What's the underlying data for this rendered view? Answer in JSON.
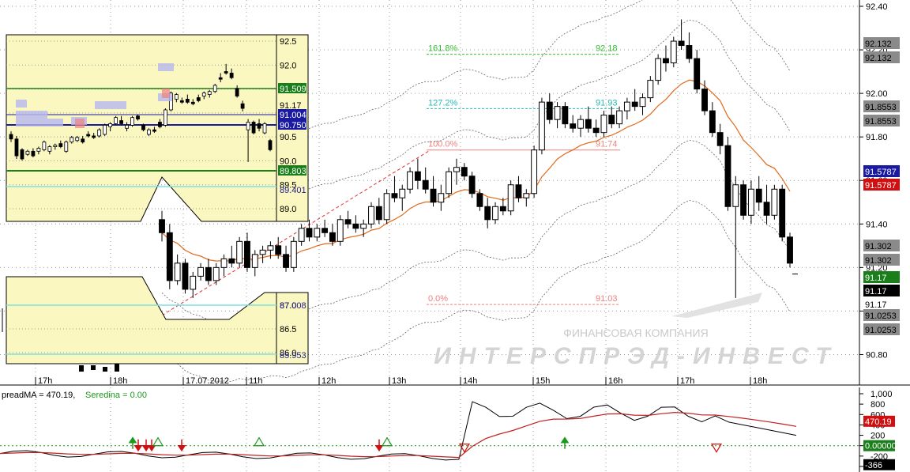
{
  "colors": {
    "up": "#ffffff",
    "down": "#000000",
    "ema": "#e06a1a",
    "band": "#666666",
    "fib_161": "#2fbf2f",
    "fib_127": "#27b7b7",
    "fib_100": "#f08080",
    "inset_bg": "#fbf7c0",
    "green_label": "#1a7f1a",
    "blue_label": "#1a1aa0",
    "red_label": "#d01010",
    "gray_label": "#8a8a8a",
    "black_label": "#000000",
    "cyan_line": "#7fe0e0"
  },
  "watermark": {
    "line1": "ФИНАНСОВАЯ КОМПАНИЯ",
    "line2": "ИНТЕРСПРЭД-ИНВЕСТ"
  },
  "main_chart": {
    "price_labels": [
      "92.40",
      "92.20",
      "92.00",
      "91.80",
      "91.60",
      "91.40",
      "91.20",
      "91.00",
      "90.80"
    ],
    "time_labels": [
      "17h",
      "18h",
      "17.07.2012",
      "11h",
      "12h",
      "13h",
      "14h",
      "15h",
      "16h",
      "17h",
      "18h"
    ],
    "fib": [
      {
        "pct": "161.8%",
        "value": "92.18"
      },
      {
        "pct": "127.2%",
        "value": "91.93"
      },
      {
        "pct": "100.0%",
        "value": "91.74"
      },
      {
        "pct": "0.0%",
        "value": "91.03"
      }
    ],
    "badges": [
      {
        "text": "92.132",
        "kind": "gray"
      },
      {
        "text": "92.132",
        "kind": "gray"
      },
      {
        "text": "91.8553",
        "kind": "gray"
      },
      {
        "text": "91.8553",
        "kind": "gray"
      },
      {
        "text": "91.5787",
        "kind": "blue"
      },
      {
        "text": "91.5787",
        "kind": "red"
      },
      {
        "text": "91.302",
        "kind": "gray"
      },
      {
        "text": "91.302",
        "kind": "gray"
      },
      {
        "text": "91.17",
        "kind": "green"
      },
      {
        "text": "91.17",
        "kind": "black"
      },
      {
        "text": "91.17",
        "kind": "plain"
      },
      {
        "text": "91.0253",
        "kind": "gray"
      },
      {
        "text": "91.0253",
        "kind": "gray"
      }
    ]
  },
  "inset_top": {
    "price_labels": [
      "92.5",
      "92.0",
      "91.5",
      "91.0",
      "90.5",
      "90.0",
      "89.5",
      "89.0"
    ],
    "badges": [
      {
        "text": "91.509",
        "kind": "green"
      },
      {
        "text": "91.17",
        "kind": "plain"
      },
      {
        "text": "91.004",
        "kind": "blue"
      },
      {
        "text": "90.750",
        "kind": "blue"
      },
      {
        "text": "89.803",
        "kind": "green"
      },
      {
        "text": "89.401",
        "kind": "cyan"
      }
    ]
  },
  "inset_bottom": {
    "price_labels": [
      "87.0",
      "86.5",
      "86.0"
    ],
    "badges": [
      {
        "text": "87.008",
        "kind": "cyan"
      },
      {
        "text": "85.953",
        "kind": "cyan"
      }
    ]
  },
  "indicator": {
    "legend_prefix": "preadMA = 470.19, ",
    "legend_seredina": "Seredina = 0.00",
    "scale_labels": [
      "1,000",
      "800",
      "600",
      "400",
      "200",
      "0",
      "-200",
      "-400"
    ],
    "badges": [
      {
        "text": "470.19",
        "kind": "red"
      },
      {
        "text": "0.00000",
        "kind": "green"
      },
      {
        "text": "-366",
        "kind": "black"
      }
    ]
  },
  "chart_data": {
    "type": "candlestick",
    "title": "",
    "price_axis": {
      "min": 90.7,
      "max": 92.4
    },
    "time_axis_labels": [
      "17h",
      "18h",
      "17.07.2012",
      "11h",
      "12h",
      "13h",
      "14h",
      "15h",
      "16h",
      "17h",
      "18h"
    ],
    "fib_levels": [
      {
        "level": "161.8%",
        "price": 92.18
      },
      {
        "level": "127.2%",
        "price": 91.93
      },
      {
        "level": "100.0%",
        "price": 91.74
      },
      {
        "level": "0.0%",
        "price": 91.03
      }
    ],
    "bands": {
      "ema": 91.5787,
      "upper1": 91.8553,
      "upper2": 92.132,
      "lower1": 91.302,
      "lower2": 91.0253
    },
    "last_price": 91.17,
    "candles": [
      [
        91.42,
        91.46,
        91.32,
        91.36
      ],
      [
        91.36,
        91.4,
        91.1,
        91.14
      ],
      [
        91.14,
        91.26,
        91.12,
        91.22
      ],
      [
        91.22,
        91.24,
        91.08,
        91.1
      ],
      [
        91.1,
        91.18,
        91.06,
        91.16
      ],
      [
        91.16,
        91.22,
        91.14,
        91.2
      ],
      [
        91.2,
        91.24,
        91.12,
        91.14
      ],
      [
        91.14,
        91.22,
        91.12,
        91.2
      ],
      [
        91.2,
        91.26,
        91.16,
        91.24
      ],
      [
        91.24,
        91.3,
        91.2,
        91.22
      ],
      [
        91.22,
        91.34,
        91.2,
        91.32
      ],
      [
        91.32,
        91.36,
        91.18,
        91.2
      ],
      [
        91.2,
        91.28,
        91.16,
        91.26
      ],
      [
        91.26,
        91.3,
        91.22,
        91.28
      ],
      [
        91.28,
        91.32,
        91.24,
        91.3
      ],
      [
        91.3,
        91.34,
        91.24,
        91.26
      ],
      [
        91.26,
        91.3,
        91.18,
        91.2
      ],
      [
        91.2,
        91.34,
        91.18,
        91.32
      ],
      [
        91.32,
        91.4,
        91.3,
        91.38
      ],
      [
        91.38,
        91.42,
        91.32,
        91.34
      ],
      [
        91.34,
        91.4,
        91.32,
        91.38
      ],
      [
        91.38,
        91.42,
        91.34,
        91.36
      ],
      [
        91.36,
        91.4,
        91.3,
        91.32
      ],
      [
        91.32,
        91.44,
        91.3,
        91.42
      ],
      [
        91.42,
        91.46,
        91.38,
        91.4
      ],
      [
        91.4,
        91.44,
        91.36,
        91.38
      ],
      [
        91.38,
        91.42,
        91.34,
        91.4
      ],
      [
        91.4,
        91.5,
        91.38,
        91.48
      ],
      [
        91.48,
        91.52,
        91.4,
        91.42
      ],
      [
        91.42,
        91.56,
        91.4,
        91.54
      ],
      [
        91.54,
        91.62,
        91.5,
        91.52
      ],
      [
        91.52,
        91.58,
        91.46,
        91.56
      ],
      [
        91.56,
        91.66,
        91.54,
        91.64
      ],
      [
        91.64,
        91.7,
        91.56,
        91.6
      ],
      [
        91.6,
        91.66,
        91.54,
        91.56
      ],
      [
        91.56,
        91.62,
        91.48,
        91.5
      ],
      [
        91.5,
        91.58,
        91.46,
        91.54
      ],
      [
        91.54,
        91.66,
        91.52,
        91.64
      ],
      [
        91.64,
        91.7,
        91.58,
        91.66
      ],
      [
        91.66,
        91.68,
        91.6,
        91.62
      ],
      [
        91.62,
        91.64,
        91.52,
        91.54
      ],
      [
        91.54,
        91.56,
        91.46,
        91.48
      ],
      [
        91.48,
        91.52,
        91.38,
        91.42
      ],
      [
        91.42,
        91.5,
        91.4,
        91.48
      ],
      [
        91.48,
        91.52,
        91.44,
        91.46
      ],
      [
        91.46,
        91.6,
        91.44,
        91.58
      ],
      [
        91.58,
        91.62,
        91.5,
        91.52
      ],
      [
        91.52,
        91.56,
        91.48,
        91.54
      ],
      [
        91.54,
        91.76,
        91.52,
        91.74
      ],
      [
        91.74,
        91.98,
        91.72,
        91.96
      ],
      [
        91.96,
        92.0,
        91.86,
        91.88
      ],
      [
        91.88,
        91.96,
        91.84,
        91.94
      ],
      [
        91.94,
        91.96,
        91.84,
        91.86
      ],
      [
        91.86,
        91.9,
        91.82,
        91.84
      ],
      [
        91.84,
        91.9,
        91.8,
        91.88
      ],
      [
        91.88,
        91.94,
        91.82,
        91.84
      ],
      [
        91.84,
        91.88,
        91.8,
        91.82
      ],
      [
        91.82,
        91.92,
        91.8,
        91.9
      ],
      [
        91.9,
        91.94,
        91.84,
        91.86
      ],
      [
        91.86,
        91.94,
        91.84,
        91.92
      ],
      [
        91.92,
        91.98,
        91.88,
        91.96
      ],
      [
        91.96,
        92.02,
        91.92,
        91.94
      ],
      [
        91.94,
        92.0,
        91.9,
        91.98
      ],
      [
        91.98,
        92.08,
        91.96,
        92.06
      ],
      [
        92.06,
        92.18,
        92.04,
        92.16
      ],
      [
        92.16,
        92.22,
        92.1,
        92.14
      ],
      [
        92.14,
        92.26,
        92.12,
        92.24
      ],
      [
        92.24,
        92.34,
        92.2,
        92.22
      ],
      [
        92.22,
        92.28,
        92.14,
        92.16
      ],
      [
        92.16,
        92.2,
        92.0,
        92.02
      ],
      [
        92.02,
        92.06,
        91.9,
        91.92
      ],
      [
        91.92,
        91.96,
        91.8,
        91.82
      ],
      [
        91.82,
        91.86,
        91.72,
        91.76
      ],
      [
        91.76,
        91.8,
        91.46,
        91.48
      ],
      [
        91.48,
        91.62,
        91.06,
        91.58
      ],
      [
        91.58,
        91.6,
        91.42,
        91.44
      ],
      [
        91.44,
        91.6,
        91.4,
        91.56
      ],
      [
        91.56,
        91.62,
        91.46,
        91.5
      ],
      [
        91.5,
        91.58,
        91.4,
        91.44
      ],
      [
        91.44,
        91.58,
        91.42,
        91.56
      ],
      [
        91.56,
        91.58,
        91.32,
        91.34
      ],
      [
        91.34,
        91.36,
        91.2,
        91.22
      ]
    ],
    "indicator_series": [
      {
        "name": "preadMA",
        "value": 470.19
      },
      {
        "name": "Seredina",
        "value": 0.0
      }
    ],
    "indicator_range": [
      -400,
      1000
    ]
  }
}
